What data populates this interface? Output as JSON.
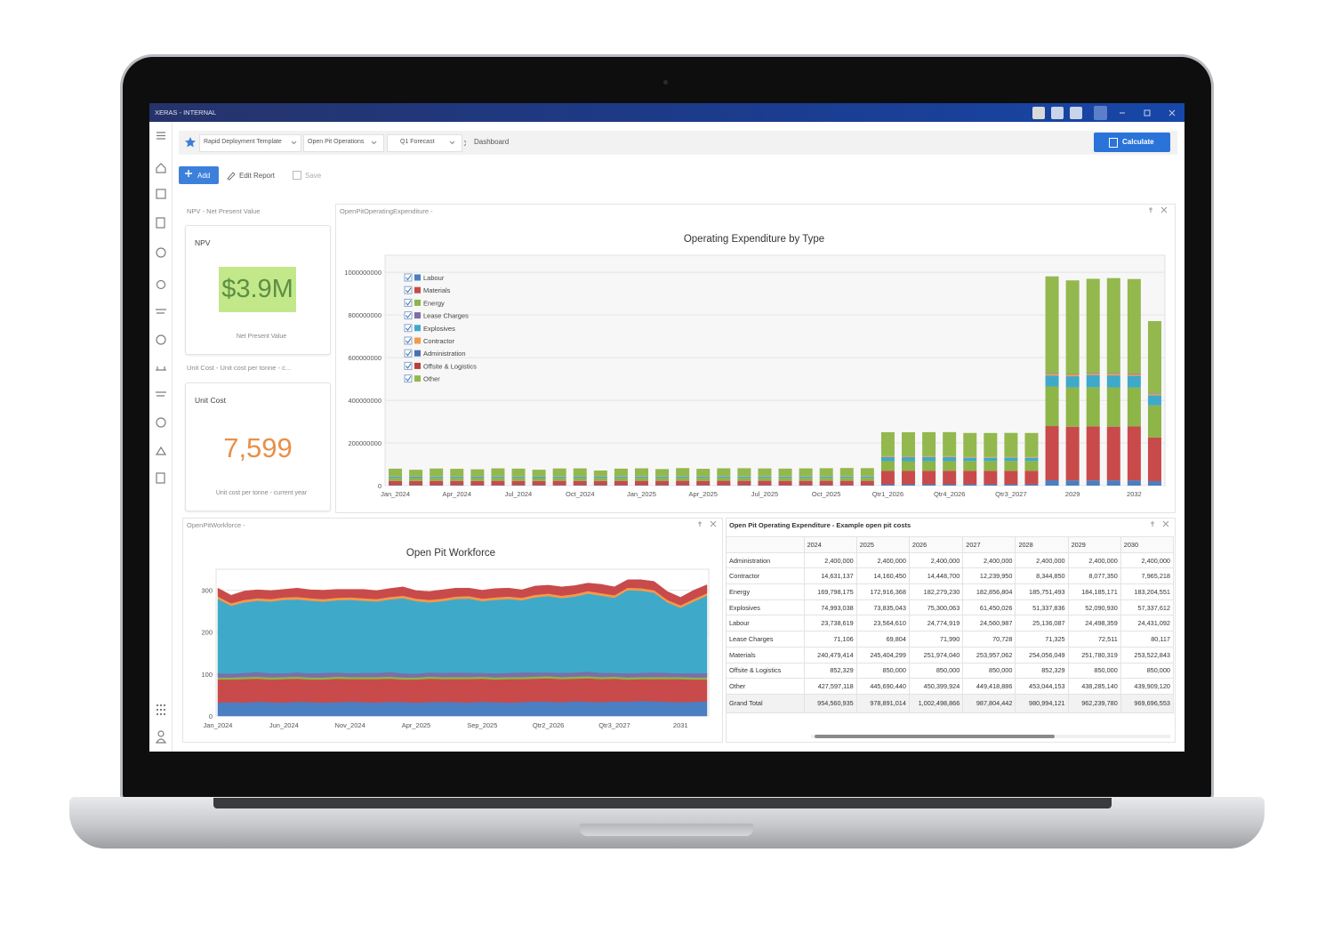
{
  "window": {
    "title": "XERAS - INTERNAL"
  },
  "breadcrumb": {
    "items": [
      "Rapid Deployment Template",
      "Open Pit Operations",
      "Q1 Forecast"
    ],
    "page": "Dashboard"
  },
  "actions": {
    "calculate": "Calculate",
    "add": "Add",
    "edit": "Edit Report",
    "save": "Save"
  },
  "npv": {
    "panel_title": "NPV - Net Present Value",
    "label": "NPV",
    "value": "$3.9M",
    "caption": "Net Present Value"
  },
  "unit_cost": {
    "panel_title": "Unit Cost - Unit cost per tonne - c...",
    "label": "Unit Cost",
    "value": "7,599",
    "caption": "Unit cost per tonne - current year"
  },
  "panels": {
    "opex": "OpenPitOperatingExpenditure -",
    "workforce": "OpenPitWorkforce -"
  },
  "table": {
    "title": "Open Pit Operating Expenditure - Example open pit costs",
    "columns": [
      "2024",
      "2025",
      "2026",
      "2027",
      "2028",
      "2029",
      "2030"
    ],
    "rows": [
      [
        "Administration",
        "2,400,000",
        "2,400,000",
        "2,400,000",
        "2,400,000",
        "2,400,000",
        "2,400,000",
        "2,400,000"
      ],
      [
        "Contractor",
        "14,631,137",
        "14,160,450",
        "14,448,700",
        "12,239,950",
        "8,344,850",
        "8,077,350",
        "7,965,218"
      ],
      [
        "Energy",
        "169,798,175",
        "172,916,368",
        "182,279,230",
        "182,856,804",
        "185,751,493",
        "184,185,171",
        "183,204,551"
      ],
      [
        "Explosives",
        "74,993,038",
        "73,835,043",
        "75,300,063",
        "61,450,026",
        "51,337,836",
        "52,090,930",
        "57,337,612"
      ],
      [
        "Labour",
        "23,738,619",
        "23,564,610",
        "24,774,919",
        "24,560,987",
        "25,136,087",
        "24,498,359",
        "24,431,092"
      ],
      [
        "Lease Charges",
        "71,106",
        "69,804",
        "71,990",
        "70,728",
        "71,325",
        "72,511",
        "80,117"
      ],
      [
        "Materials",
        "240,479,414",
        "245,404,299",
        "251,974,040",
        "253,957,062",
        "254,056,049",
        "251,780,319",
        "253,522,843"
      ],
      [
        "Offsite & Logistics",
        "852,329",
        "850,000",
        "850,000",
        "850,000",
        "852,329",
        "850,000",
        "850,000"
      ],
      [
        "Other",
        "427,597,118",
        "445,690,440",
        "450,399,924",
        "449,418,886",
        "453,044,153",
        "438,285,140",
        "439,909,120"
      ]
    ],
    "total": [
      "Grand Total",
      "954,560,935",
      "978,891,014",
      "1,002,498,866",
      "987,804,442",
      "980,994,121",
      "962,239,780",
      "969,696,553"
    ]
  },
  "chart_data": [
    {
      "type": "bar",
      "stacked": true,
      "title": "Operating Expenditure by Type",
      "legend": "upper-left",
      "grid": true,
      "categories": [
        "Jan_2024",
        null,
        null,
        "Apr_2024",
        null,
        null,
        "Jul_2024",
        null,
        null,
        "Oct_2024",
        null,
        null,
        "Jan_2025",
        null,
        null,
        "Apr_2025",
        null,
        null,
        "Jul_2025",
        null,
        null,
        "Oct_2025",
        null,
        null,
        "Qtr1_2026",
        null,
        null,
        "Qtr4_2026",
        null,
        null,
        "Qtr3_2027",
        null,
        null,
        "2029",
        null,
        null,
        "2032",
        null
      ],
      "ylim": [
        0,
        1080000000
      ],
      "yticks": [
        0,
        200000000,
        400000000,
        600000000,
        800000000,
        1000000000
      ],
      "series": [
        {
          "name": "Labour",
          "color": "#4a7fc1",
          "values": [
            1980000,
            1950000,
            2010000,
            1990000,
            1970000,
            2000000,
            1980000,
            1960000,
            2020000,
            1990000,
            1970000,
            1990000,
            1960000,
            1980000,
            2000000,
            1950000,
            1990000,
            1970000,
            2010000,
            1960000,
            1980000,
            1970000,
            1990000,
            1990000,
            6190000,
            6200000,
            6180000,
            6200000,
            6140000,
            6150000,
            6130000,
            6140000,
            25136087,
            24498359,
            24431092,
            24600000,
            24500000,
            21000000
          ]
        },
        {
          "name": "Materials",
          "color": "#c94a4a",
          "values": [
            20100000,
            19800000,
            20200000,
            20000000,
            19900000,
            20300000,
            20100000,
            19700000,
            20200000,
            20000000,
            20000000,
            20200000,
            20400000,
            20300000,
            20500000,
            20200000,
            20600000,
            20400000,
            20500000,
            20300000,
            20400000,
            20600000,
            20500000,
            20500000,
            63000000,
            62800000,
            63100000,
            63100000,
            63500000,
            63400000,
            63600000,
            63500000,
            254056049,
            251780319,
            253522843,
            252000000,
            253000000,
            205000000
          ]
        },
        {
          "name": "Energy",
          "color": "#8db548",
          "values": [
            14100000,
            13900000,
            14300000,
            14200000,
            14000000,
            14400000,
            14200000,
            13800000,
            14300000,
            14100000,
            14200000,
            14300000,
            14400000,
            14300000,
            14500000,
            14200000,
            14600000,
            14400000,
            14500000,
            14300000,
            14400000,
            14500000,
            14500000,
            14500000,
            45600000,
            45500000,
            45600000,
            45600000,
            45700000,
            45700000,
            45800000,
            45700000,
            185751493,
            184185171,
            183204551,
            184000000,
            183000000,
            150000000
          ]
        },
        {
          "name": "Lease Charges",
          "color": "#7b6fa8",
          "values": [
            5900,
            5900,
            5900,
            5900,
            5900,
            5900,
            5900,
            5900,
            5900,
            5900,
            5900,
            5900,
            5800,
            5800,
            5800,
            5800,
            5800,
            5800,
            5800,
            5800,
            5800,
            5800,
            5800,
            5800,
            18000,
            18000,
            18000,
            18000,
            17700,
            17700,
            17700,
            17700,
            71325,
            72511,
            80117,
            80000,
            80000,
            65000
          ]
        },
        {
          "name": "Explosives",
          "color": "#3fa9c9",
          "values": [
            6250000,
            6200000,
            6300000,
            6250000,
            6200000,
            6300000,
            6250000,
            6200000,
            6300000,
            6250000,
            6200000,
            6250000,
            6150000,
            6100000,
            6200000,
            6150000,
            6100000,
            6200000,
            6150000,
            6100000,
            6200000,
            6150000,
            6150000,
            6150000,
            18800000,
            18800000,
            18800000,
            18900000,
            15400000,
            15300000,
            15400000,
            15300000,
            51337836,
            52090930,
            57337612,
            56000000,
            55000000,
            48000000
          ]
        },
        {
          "name": "Contractor",
          "color": "#f39a4a",
          "values": [
            1220000,
            1220000,
            1220000,
            1220000,
            1220000,
            1220000,
            1220000,
            1220000,
            1220000,
            1220000,
            1220000,
            1210000,
            1180000,
            1180000,
            1180000,
            1180000,
            1180000,
            1180000,
            1180000,
            1180000,
            1180000,
            1180000,
            1180000,
            1170000,
            3610000,
            3610000,
            3610000,
            3610000,
            3060000,
            3060000,
            3060000,
            3060000,
            8344850,
            8077350,
            7965218,
            7900000,
            7800000,
            6500000
          ]
        },
        {
          "name": "Administration",
          "color": "#4a6fb5",
          "values": [
            200000,
            200000,
            200000,
            200000,
            200000,
            200000,
            200000,
            200000,
            200000,
            200000,
            200000,
            200000,
            200000,
            200000,
            200000,
            200000,
            200000,
            200000,
            200000,
            200000,
            200000,
            200000,
            200000,
            200000,
            600000,
            600000,
            600000,
            600000,
            600000,
            600000,
            600000,
            600000,
            2400000,
            2400000,
            2400000,
            2400000,
            2400000,
            2000000
          ]
        },
        {
          "name": "Offsite & Logistics",
          "color": "#b8403d",
          "values": [
            71000,
            71000,
            71000,
            71000,
            71000,
            71000,
            71000,
            71000,
            71000,
            71000,
            71000,
            71000,
            70800,
            70800,
            70800,
            70800,
            70800,
            70800,
            70800,
            70800,
            70800,
            70800,
            70800,
            70800,
            212500,
            212500,
            212500,
            212500,
            212500,
            212500,
            212500,
            212500,
            852329,
            850000,
            850000,
            850000,
            850000,
            700000
          ]
        },
        {
          "name": "Other",
          "color": "#93b84e",
          "values": [
            35600000,
            31000000,
            36000000,
            35000000,
            33000000,
            36500000,
            35800000,
            31500000,
            36200000,
            37000000,
            27000000,
            35500000,
            36800000,
            33500000,
            37500000,
            35000000,
            36500000,
            37200000,
            36000000,
            35800000,
            36500000,
            37000000,
            38000000,
            37500000,
            112600000,
            112600000,
            112600000,
            112600000,
            112300000,
            112300000,
            112400000,
            112400000,
            453044153,
            438285140,
            439909120,
            445000000,
            442000000,
            338000000
          ]
        }
      ]
    },
    {
      "type": "area",
      "stacked": true,
      "title": "Open Pit Workforce",
      "grid": true,
      "categories": [
        "Jan_2024",
        null,
        null,
        null,
        null,
        "Jun_2024",
        null,
        null,
        null,
        null,
        "Nov_2024",
        null,
        null,
        null,
        null,
        "Apr_2025",
        null,
        null,
        null,
        null,
        "Sep_2025",
        null,
        null,
        null,
        null,
        "Qtr2_2026",
        null,
        null,
        null,
        null,
        "Qtr3_2027",
        null,
        null,
        null,
        null,
        "2031",
        null,
        null
      ],
      "ylim": [
        0,
        350
      ],
      "yticks": [
        0,
        100,
        200,
        300
      ],
      "series": [
        {
          "color": "#4a7fc1",
          "values": [
            32,
            33,
            32,
            34,
            33,
            32,
            34,
            33,
            32,
            33,
            34,
            33,
            32,
            34,
            33,
            32,
            33,
            34,
            33,
            32,
            34,
            33,
            32,
            33,
            35,
            34,
            33,
            35,
            34,
            33,
            35,
            34,
            36,
            35,
            34,
            33,
            34,
            35
          ]
        },
        {
          "color": "#c94a4a",
          "values": [
            55,
            54,
            56,
            55,
            54,
            56,
            55,
            54,
            55,
            56,
            54,
            55,
            56,
            55,
            54,
            55,
            56,
            54,
            55,
            56,
            55,
            54,
            56,
            55,
            54,
            56,
            55,
            54,
            56,
            55,
            54,
            53,
            52,
            53,
            54,
            55,
            53,
            52
          ]
        },
        {
          "color": "#8db548",
          "values": [
            5,
            5,
            5,
            5,
            5,
            5,
            5,
            5,
            5,
            5,
            5,
            5,
            5,
            5,
            5,
            5,
            5,
            5,
            5,
            5,
            5,
            5,
            5,
            5,
            5,
            5,
            5,
            5,
            5,
            5,
            5,
            5,
            5,
            5,
            5,
            5,
            5,
            5
          ]
        },
        {
          "color": "#7b6fa8",
          "values": [
            10,
            9,
            10,
            11,
            10,
            9,
            10,
            10,
            11,
            10,
            9,
            10,
            10,
            11,
            10,
            9,
            10,
            10,
            11,
            10,
            9,
            10,
            10,
            11,
            10,
            9,
            10,
            10,
            11,
            10,
            9,
            10,
            10,
            11,
            10,
            9,
            10,
            10
          ]
        },
        {
          "color": "#3fa9c9",
          "values": [
            177,
            162,
            168,
            170,
            171,
            175,
            174,
            173,
            170,
            172,
            175,
            172,
            170,
            173,
            179,
            173,
            167,
            171,
            175,
            177,
            171,
            175,
            176,
            172,
            179,
            182,
            178,
            181,
            186,
            184,
            179,
            198,
            196,
            190,
            168,
            156,
            171,
            185
          ]
        },
        {
          "color": "#f39a4a",
          "values": [
            6,
            6,
            6,
            6,
            6,
            6,
            6,
            6,
            6,
            6,
            6,
            6,
            6,
            6,
            6,
            6,
            6,
            6,
            6,
            6,
            6,
            6,
            6,
            6,
            6,
            6,
            6,
            6,
            6,
            6,
            6,
            6,
            6,
            6,
            6,
            6,
            6,
            6
          ]
        },
        {
          "color": "#c94a4a",
          "values": [
            20,
            19,
            21,
            20,
            20,
            19,
            21,
            20,
            21,
            20,
            19,
            21,
            20,
            20,
            21,
            19,
            20,
            21,
            20,
            19,
            20,
            21,
            20,
            19,
            21,
            20,
            21,
            20,
            19,
            21,
            20,
            19,
            20,
            21,
            20,
            19,
            21,
            20
          ]
        }
      ]
    }
  ]
}
